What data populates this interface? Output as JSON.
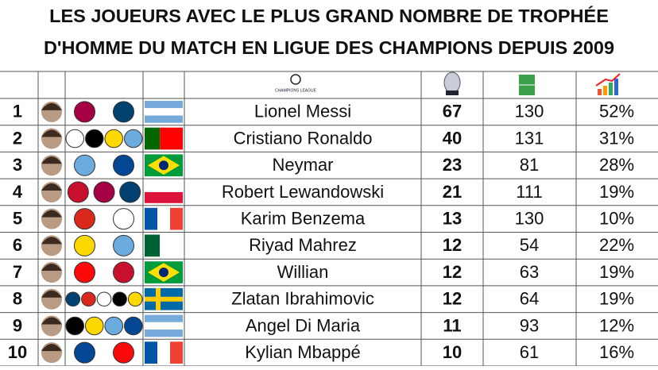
{
  "header": {
    "title_lines": [
      "LES JOUEURS AVEC LE PLUS GRAND NOMBRE DE TROPHÉE",
      "D'HOMME DU MATCH EN LIGUE DES CHAMPIONS DEPUIS 2009"
    ],
    "league_logo_text": "CHAMPIONS LEAGUE"
  },
  "table": {
    "rows": [
      [
        "1",
        "Lionel Messi",
        "67",
        "130",
        "52%"
      ],
      [
        "2",
        "Cristiano Ronaldo",
        "40",
        "131",
        "31%"
      ],
      [
        "3",
        "Neymar",
        "23",
        "81",
        "28%"
      ],
      [
        "4",
        "Robert Lewandowski",
        "21",
        "111",
        "19%"
      ],
      [
        "5",
        "Karim Benzema",
        "13",
        "130",
        "10%"
      ],
      [
        "6",
        "Riyad Mahrez",
        "12",
        "54",
        "22%"
      ],
      [
        "7",
        "Willian",
        "12",
        "63",
        "19%"
      ],
      [
        "8",
        "Zlatan Ibrahimovic",
        "12",
        "64",
        "19%"
      ],
      [
        "9",
        "Angel Di Maria",
        "11",
        "93",
        "12%"
      ],
      [
        "10",
        "Kylian Mbappé",
        "10",
        "61",
        "16%"
      ]
    ]
  }
}
